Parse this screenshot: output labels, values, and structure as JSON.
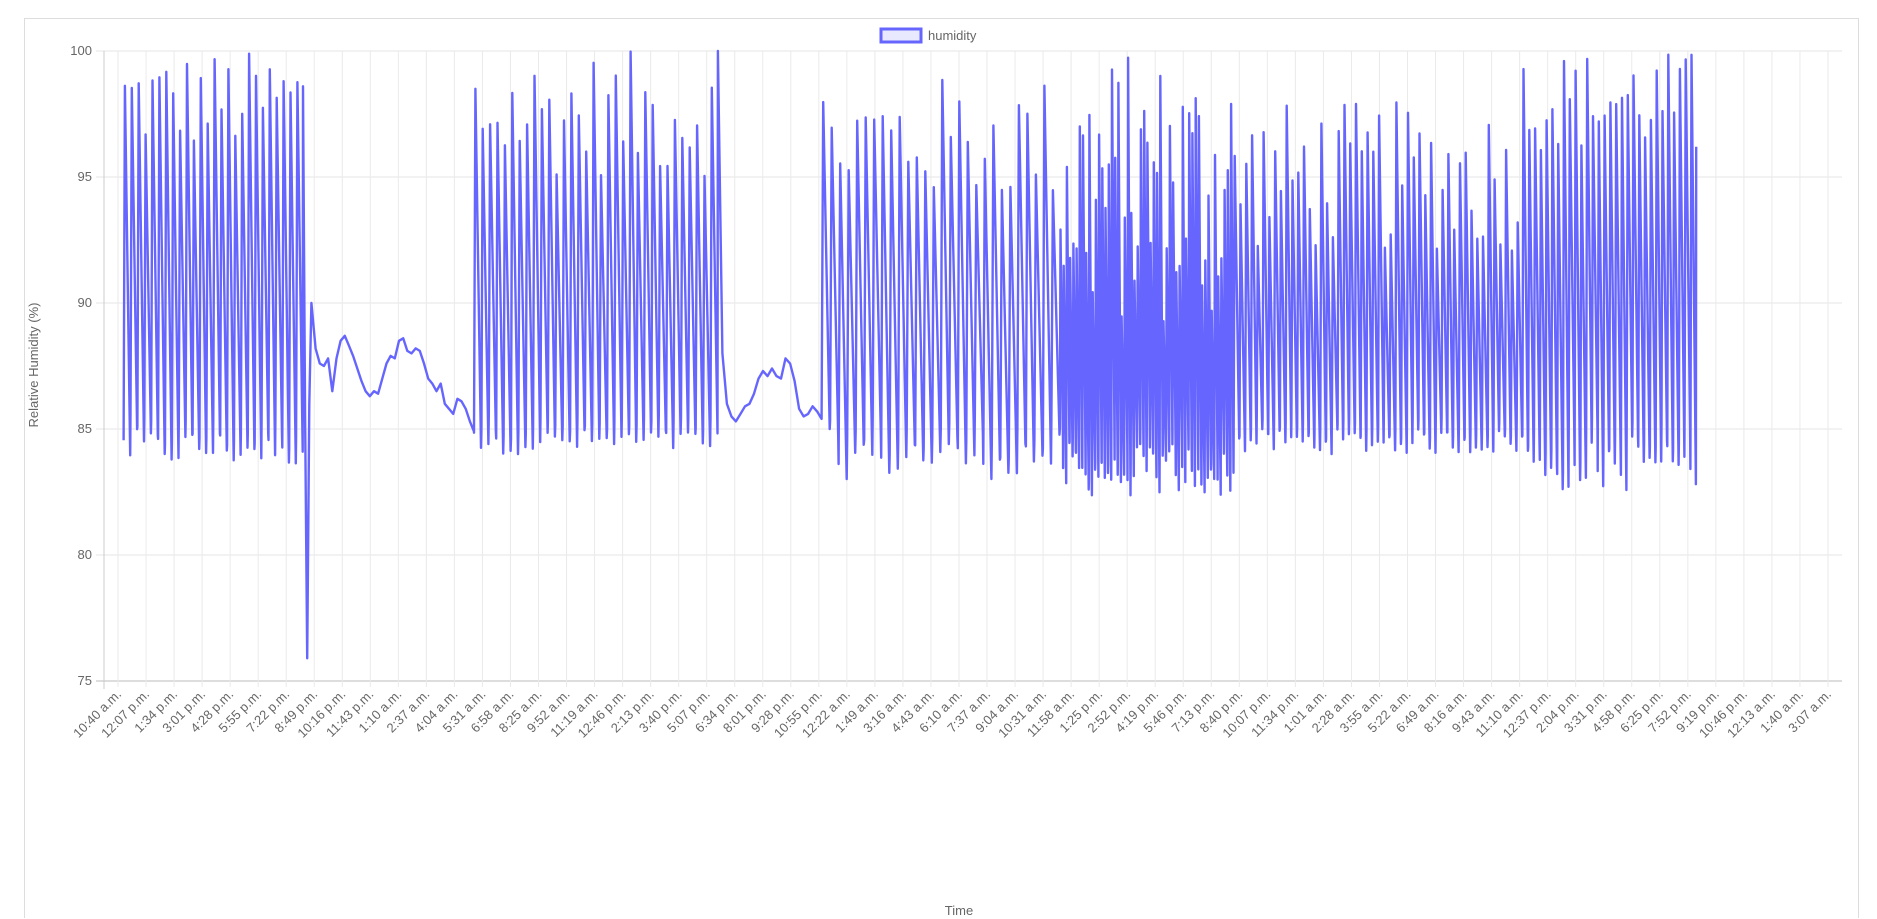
{
  "chart_data": {
    "type": "line",
    "title": "",
    "xlabel": "Time",
    "ylabel": "Relative Humidity (%)",
    "ylim": [
      75,
      100
    ],
    "y_ticks": [
      75,
      80,
      85,
      90,
      95,
      100
    ],
    "grid": true,
    "legend_position": "top",
    "series": [
      {
        "name": "humidity",
        "color": "#6666ff",
        "fill": "rgba(102,102,255,0.15)"
      }
    ],
    "x_tick_labels": [
      "10:40 a.m.",
      "12:07 p.m.",
      "1:34 p.m.",
      "3:01 p.m.",
      "4:28 p.m.",
      "5:55 p.m.",
      "7:22 p.m.",
      "8:49 p.m.",
      "10:16 p.m.",
      "11:43 p.m.",
      "1:10 a.m.",
      "2:37 a.m.",
      "4:04 a.m.",
      "5:31 a.m.",
      "6:58 a.m.",
      "8:25 a.m.",
      "9:52 a.m.",
      "11:19 a.m.",
      "12:46 p.m.",
      "2:13 p.m.",
      "3:40 p.m.",
      "5:07 p.m.",
      "6:34 p.m.",
      "8:01 p.m.",
      "9:28 p.m.",
      "10:55 p.m.",
      "12:22 a.m.",
      "1:49 a.m.",
      "3:16 a.m.",
      "4:43 a.m.",
      "6:10 a.m.",
      "7:37 a.m.",
      "9:04 a.m.",
      "10:31 a.m.",
      "11:58 a.m.",
      "1:25 p.m.",
      "2:52 p.m.",
      "4:19 p.m.",
      "5:46 p.m.",
      "7:13 p.m.",
      "8:40 p.m.",
      "10:07 p.m.",
      "11:34 p.m.",
      "1:01 a.m.",
      "2:28 a.m.",
      "3:55 a.m.",
      "5:22 a.m.",
      "6:49 a.m.",
      "8:16 a.m.",
      "9:43 a.m.",
      "11:10 a.m.",
      "12:37 p.m.",
      "2:04 p.m.",
      "3:31 p.m.",
      "4:58 p.m.",
      "6:25 p.m.",
      "7:52 p.m.",
      "9:19 p.m.",
      "10:46 p.m.",
      "12:13 a.m.",
      "1:40 a.m.",
      "3:07 a.m."
    ],
    "segments": [
      {
        "start_tick": 0.2,
        "end_tick": 6.6,
        "pattern": "oscillate",
        "cycles": 26,
        "peak_range": [
          96,
          100
        ],
        "trough_range": [
          83.5,
          85
        ]
      },
      {
        "start_tick": 6.6,
        "end_tick": 6.9,
        "pattern": "spike_down",
        "values": [
          98.6,
          85.5,
          75.9,
          86,
          90
        ]
      },
      {
        "start_tick": 6.9,
        "end_tick": 12.7,
        "pattern": "values",
        "values": [
          90,
          88.2,
          87.6,
          87.5,
          87.8,
          86.5,
          87.8,
          88.5,
          88.7,
          88.3,
          87.9,
          87.4,
          86.9,
          86.5,
          86.3,
          86.5,
          86.4,
          87.0,
          87.6,
          87.9,
          87.8,
          88.5,
          88.6,
          88.1,
          88.0,
          88.2,
          88.1,
          87.6,
          87.0,
          86.8,
          86.5,
          86.8,
          86.0,
          85.8,
          85.6,
          86.2,
          86.1,
          85.8,
          85.3,
          84.9
        ]
      },
      {
        "start_tick": 12.7,
        "end_tick": 21.4,
        "pattern": "oscillate",
        "cycles": 33,
        "peak_range": [
          95,
          100
        ],
        "trough_range": [
          84,
          85
        ]
      },
      {
        "start_tick": 21.4,
        "end_tick": 25.1,
        "pattern": "values",
        "values": [
          100,
          88,
          86,
          85.5,
          85.3,
          85.6,
          85.9,
          86.0,
          86.4,
          87.0,
          87.3,
          87.1,
          87.4,
          87.1,
          87.0,
          87.8,
          87.6,
          86.9,
          85.8,
          85.5,
          85.6,
          85.9,
          85.7,
          85.4
        ]
      },
      {
        "start_tick": 25.1,
        "end_tick": 33.6,
        "pattern": "oscillate",
        "cycles": 28,
        "peak_range": [
          94,
          99
        ],
        "trough_range": [
          83,
          85
        ]
      },
      {
        "start_tick": 33.6,
        "end_tick": 39.8,
        "pattern": "oscillate",
        "cycles": 54,
        "peak_range": [
          89,
          100
        ],
        "trough_range": [
          82.3,
          84.5
        ]
      },
      {
        "start_tick": 39.8,
        "end_tick": 50.1,
        "pattern": "oscillate",
        "cycles": 50,
        "peak_range": [
          92,
          98
        ],
        "trough_range": [
          84,
          85
        ]
      },
      {
        "start_tick": 50.1,
        "end_tick": 56.3,
        "pattern": "oscillate",
        "cycles": 30,
        "peak_range": [
          96,
          100
        ],
        "trough_range": [
          82.5,
          85
        ]
      }
    ],
    "data_end_tick": 56.3,
    "data_end_value": 96.2
  }
}
